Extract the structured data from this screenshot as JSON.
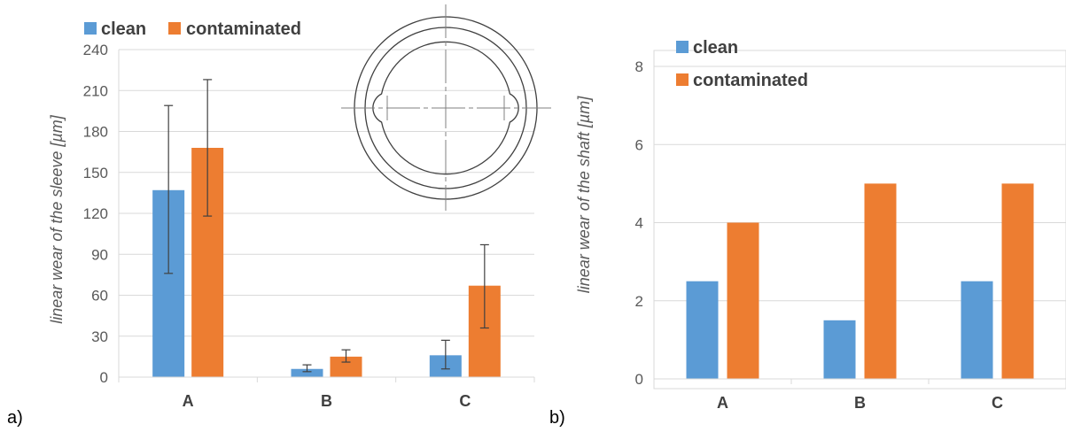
{
  "chart_data": [
    {
      "panel_label": "a)",
      "type": "bar",
      "ylabel": "linear wear of the sleeve [µm]",
      "xlabel": "",
      "ylim": [
        0,
        240
      ],
      "yticks": [
        0,
        30,
        60,
        90,
        120,
        150,
        180,
        210,
        240
      ],
      "categories": [
        "A",
        "B",
        "C"
      ],
      "legend_position": "top-left",
      "grid": true,
      "series": [
        {
          "name": "clean",
          "color": "#5b9bd5",
          "values": [
            137,
            6,
            16
          ],
          "err_low": [
            76,
            4,
            6
          ],
          "err_high": [
            199,
            9,
            27
          ]
        },
        {
          "name": "contaminated",
          "color": "#ed7d31",
          "values": [
            168,
            15,
            67
          ],
          "err_low": [
            118,
            11,
            36
          ],
          "err_high": [
            218,
            20,
            97
          ]
        }
      ],
      "inset": "sleeve-cross-section-drawing"
    },
    {
      "panel_label": "b)",
      "type": "bar",
      "ylabel": "linear wear of the shaft [µm]",
      "xlabel": "",
      "ylim": [
        0,
        8
      ],
      "yticks": [
        0,
        2,
        4,
        6,
        8
      ],
      "categories": [
        "A",
        "B",
        "C"
      ],
      "legend_position": "top-left",
      "grid": true,
      "series": [
        {
          "name": "clean",
          "color": "#5b9bd5",
          "values": [
            2.5,
            1.5,
            2.5
          ]
        },
        {
          "name": "contaminated",
          "color": "#ed7d31",
          "values": [
            4,
            5,
            5
          ]
        }
      ]
    }
  ]
}
